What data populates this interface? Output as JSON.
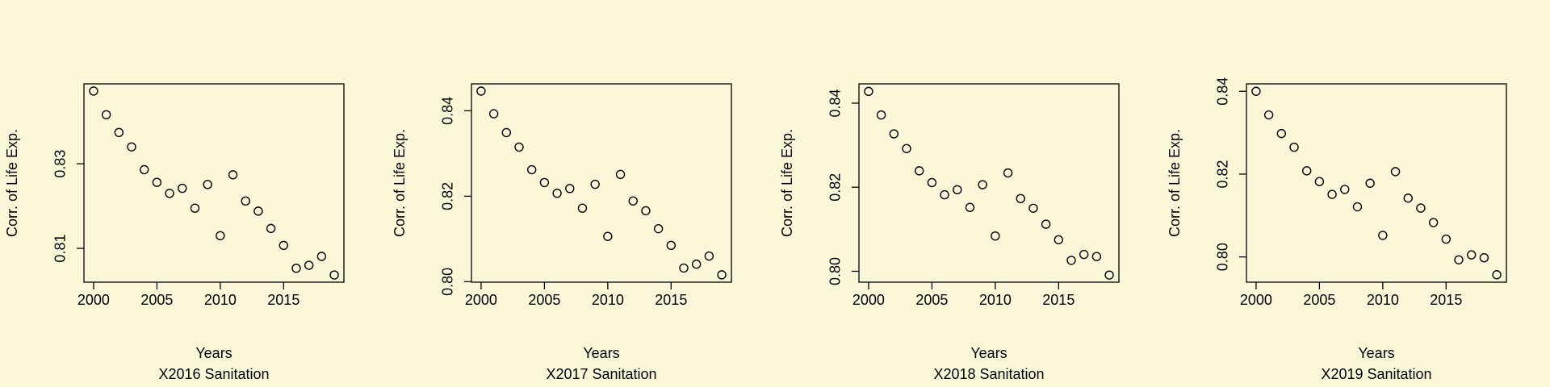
{
  "chart_data": [
    {
      "type": "scatter",
      "title": "X2016 Sanitation",
      "xlabel": "Years",
      "ylabel": "Corr. of Life Exp.",
      "x": [
        2000,
        2001,
        2002,
        2003,
        2004,
        2005,
        2006,
        2007,
        2008,
        2009,
        2010,
        2011,
        2012,
        2013,
        2014,
        2015,
        2016,
        2017,
        2018,
        2019
      ],
      "values": [
        0.8472,
        0.8416,
        0.8374,
        0.834,
        0.8286,
        0.8256,
        0.823,
        0.8242,
        0.8195,
        0.8251,
        0.813,
        0.8274,
        0.8212,
        0.8188,
        0.8147,
        0.8107,
        0.8053,
        0.806,
        0.8081,
        0.8037
      ],
      "xlim": [
        1999.24,
        2019.76
      ],
      "ylim": [
        0.802,
        0.8489
      ],
      "xticks": [
        2000,
        2005,
        2010,
        2015
      ],
      "yticks": [
        0.81,
        0.83
      ],
      "color": "#000000"
    },
    {
      "type": "scatter",
      "title": "X2017 Sanitation",
      "xlabel": "Years",
      "ylabel": "Corr. of Life Exp.",
      "x": [
        2000,
        2001,
        2002,
        2003,
        2004,
        2005,
        2006,
        2007,
        2008,
        2009,
        2010,
        2011,
        2012,
        2013,
        2014,
        2015,
        2016,
        2017,
        2018,
        2019
      ],
      "values": [
        0.8446,
        0.8393,
        0.8349,
        0.8315,
        0.8262,
        0.8232,
        0.8207,
        0.8218,
        0.8172,
        0.8228,
        0.8106,
        0.8251,
        0.8189,
        0.8166,
        0.8124,
        0.8085,
        0.8032,
        0.8041,
        0.806,
        0.8016
      ],
      "xlim": [
        1999.24,
        2019.76
      ],
      "ylim": [
        0.79988,
        0.8463
      ],
      "xticks": [
        2000,
        2005,
        2010,
        2015
      ],
      "yticks": [
        {
          "value": 0.8,
          "label": "0.80"
        },
        0.82,
        0.84
      ],
      "color": "#000000"
    },
    {
      "type": "scatter",
      "title": "X2018 Sanitation",
      "xlabel": "Years",
      "ylabel": "Corr. of Life Exp.",
      "x": [
        2000,
        2001,
        2002,
        2003,
        2004,
        2005,
        2006,
        2007,
        2008,
        2009,
        2010,
        2011,
        2012,
        2013,
        2014,
        2015,
        2016,
        2017,
        2018,
        2019
      ],
      "values": [
        0.8428,
        0.8372,
        0.8327,
        0.8292,
        0.8239,
        0.8211,
        0.8182,
        0.8194,
        0.8152,
        0.8206,
        0.8084,
        0.8234,
        0.8173,
        0.815,
        0.8112,
        0.8075,
        0.8026,
        0.804,
        0.8035,
        0.7991
      ],
      "xlim": [
        1999.24,
        2019.76
      ],
      "ylim": [
        0.7974,
        0.8446
      ],
      "xticks": [
        2000,
        2005,
        2010,
        2015
      ],
      "yticks": [
        {
          "value": 0.8,
          "label": "0.80"
        },
        0.82,
        0.84
      ],
      "color": "#000000"
    },
    {
      "type": "scatter",
      "title": "X2019 Sanitation",
      "xlabel": "Years",
      "ylabel": "Corr. of Life Exp.",
      "x": [
        2000,
        2001,
        2002,
        2003,
        2004,
        2005,
        2006,
        2007,
        2008,
        2009,
        2010,
        2011,
        2012,
        2013,
        2014,
        2015,
        2016,
        2017,
        2018,
        2019
      ],
      "values": [
        0.84,
        0.8343,
        0.8298,
        0.8265,
        0.8208,
        0.8182,
        0.8151,
        0.8163,
        0.8121,
        0.8178,
        0.8052,
        0.8206,
        0.8142,
        0.8118,
        0.8083,
        0.8043,
        0.7993,
        0.8005,
        0.7998,
        0.7957
      ],
      "xlim": [
        1999.24,
        2019.76
      ],
      "ylim": [
        0.7939,
        0.8418
      ],
      "xticks": [
        2000,
        2005,
        2010,
        2015
      ],
      "yticks": [
        {
          "value": 0.8,
          "label": "0.80"
        },
        0.82,
        0.84
      ],
      "color": "#000000"
    }
  ]
}
